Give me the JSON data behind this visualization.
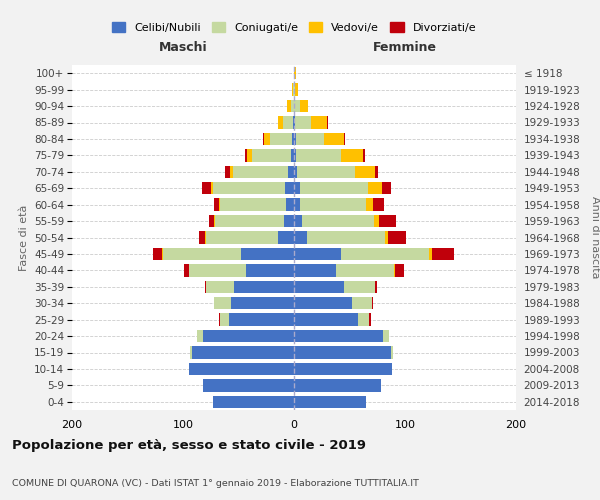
{
  "age_groups": [
    "0-4",
    "5-9",
    "10-14",
    "15-19",
    "20-24",
    "25-29",
    "30-34",
    "35-39",
    "40-44",
    "45-49",
    "50-54",
    "55-59",
    "60-64",
    "65-69",
    "70-74",
    "75-79",
    "80-84",
    "85-89",
    "90-94",
    "95-99",
    "100+"
  ],
  "birth_years": [
    "2014-2018",
    "2009-2013",
    "2004-2008",
    "1999-2003",
    "1994-1998",
    "1989-1993",
    "1984-1988",
    "1979-1983",
    "1974-1978",
    "1969-1973",
    "1964-1968",
    "1959-1963",
    "1954-1958",
    "1949-1953",
    "1944-1948",
    "1939-1943",
    "1934-1938",
    "1929-1933",
    "1924-1928",
    "1919-1923",
    "≤ 1918"
  ],
  "colors": {
    "celibi": "#4472c4",
    "coniugati": "#c5d9a0",
    "vedovi": "#ffc000",
    "divorziati": "#c0000b"
  },
  "maschi": {
    "celibi": [
      73,
      82,
      95,
      92,
      82,
      59,
      57,
      54,
      43,
      48,
      14,
      9,
      7,
      8,
      5,
      3,
      2,
      1,
      0,
      0,
      0
    ],
    "coniugati": [
      0,
      0,
      0,
      2,
      5,
      8,
      15,
      25,
      52,
      70,
      65,
      62,
      60,
      65,
      50,
      35,
      20,
      9,
      3,
      1,
      0
    ],
    "vedovi": [
      0,
      0,
      0,
      0,
      0,
      0,
      0,
      0,
      0,
      1,
      1,
      1,
      1,
      2,
      3,
      4,
      5,
      4,
      3,
      1,
      0
    ],
    "divorziati": [
      0,
      0,
      0,
      0,
      0,
      1,
      0,
      1,
      4,
      8,
      6,
      5,
      4,
      8,
      4,
      2,
      1,
      0,
      0,
      0,
      0
    ]
  },
  "femmine": {
    "celibi": [
      65,
      78,
      88,
      87,
      80,
      58,
      52,
      45,
      38,
      42,
      12,
      7,
      5,
      5,
      3,
      2,
      2,
      1,
      0,
      0,
      0
    ],
    "coniugati": [
      0,
      0,
      0,
      2,
      6,
      10,
      18,
      28,
      52,
      80,
      70,
      65,
      60,
      62,
      52,
      40,
      25,
      14,
      5,
      1,
      0
    ],
    "vedovi": [
      0,
      0,
      0,
      0,
      0,
      0,
      0,
      0,
      1,
      2,
      3,
      5,
      6,
      12,
      18,
      20,
      18,
      15,
      8,
      3,
      2
    ],
    "divorziati": [
      0,
      0,
      0,
      0,
      0,
      1,
      1,
      2,
      8,
      20,
      16,
      15,
      10,
      8,
      3,
      2,
      1,
      1,
      0,
      0,
      0
    ]
  },
  "title": "Popolazione per età, sesso e stato civile - 2019",
  "subtitle": "COMUNE DI QUARONA (VC) - Dati ISTAT 1° gennaio 2019 - Elaborazione TUTTITALIA.IT",
  "xlabel_left": "Maschi",
  "xlabel_right": "Femmine",
  "ylabel_left": "Fasce di età",
  "ylabel_right": "Anni di nascita",
  "xlim": 200,
  "legend_labels": [
    "Celibi/Nubili",
    "Coniugati/e",
    "Vedovi/e",
    "Divorziati/e"
  ],
  "bg_color": "#f2f2f2",
  "plot_bg": "#ffffff"
}
